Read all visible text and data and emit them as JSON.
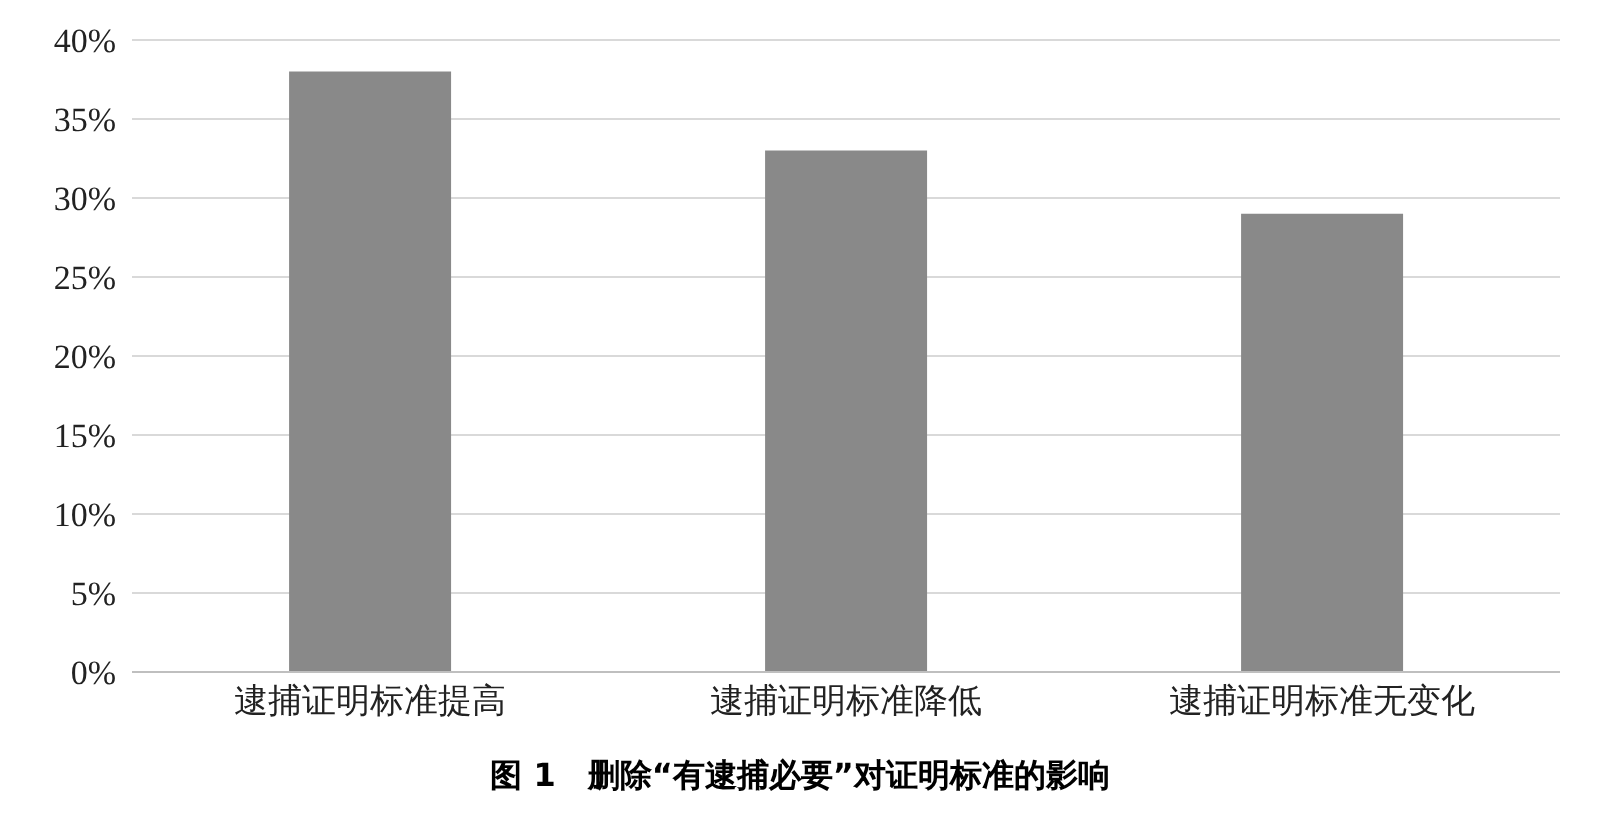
{
  "chart_data": {
    "type": "bar",
    "title": "图 1　删除“有逮捕必要”对证明标准的影响",
    "categories": [
      "逮捕证明标准提高",
      "逮捕证明标准降低",
      "逮捕证明标准无变化"
    ],
    "values": [
      38,
      33,
      29
    ],
    "color": "#898989",
    "ylim": [
      0,
      40
    ],
    "yticks": [
      {
        "value": 0,
        "label": "0%"
      },
      {
        "value": 5,
        "label": "5%"
      },
      {
        "value": 10,
        "label": "10%"
      },
      {
        "value": 15,
        "label": "15%"
      },
      {
        "value": 20,
        "label": "20%"
      },
      {
        "value": 25,
        "label": "25%"
      },
      {
        "value": 30,
        "label": "30%"
      },
      {
        "value": 35,
        "label": "35%"
      },
      {
        "value": 40,
        "label": "40%"
      }
    ],
    "grid": "y"
  }
}
